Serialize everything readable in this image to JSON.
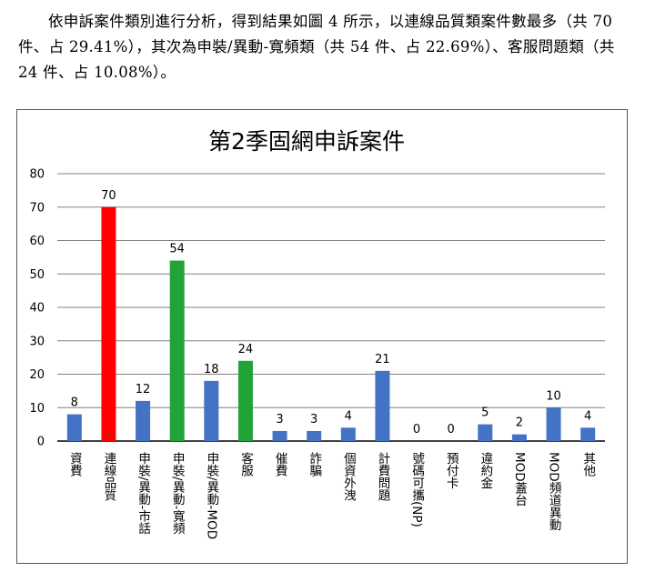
{
  "document": {
    "paragraph": "依申訴案件類別進行分析，得到結果如圖 4 所示，以連線品質類案件數最多（共 70 件、占 29.41%），其次為申裝/異動-寬頻類（共 54 件、占 22.69%）、客服問題類（共 24 件、占 10.08%）。"
  },
  "chart_data": {
    "type": "bar",
    "title": "第2季固網申訴案件",
    "xlabel": "",
    "ylabel": "",
    "ylim": [
      0,
      80
    ],
    "yticks": [
      0,
      10,
      20,
      30,
      40,
      50,
      60,
      70,
      80
    ],
    "grid": true,
    "legend": "none",
    "categories": [
      "資費",
      "連線品質",
      "申裝/異動-市話",
      "申裝/異動-寬頻",
      "申裝/異動-MOD",
      "客服",
      "催費",
      "詐騙",
      "個資外洩",
      "計費問題",
      "號碼可攜(NP)",
      "預付卡",
      "違約金",
      "MOD蓋台",
      "MOD頻道異動",
      "其他"
    ],
    "values": [
      8,
      70,
      12,
      54,
      18,
      24,
      3,
      3,
      4,
      21,
      0,
      0,
      5,
      2,
      10,
      4
    ],
    "bar_colors": [
      "#4472C4",
      "#FF0000",
      "#4472C4",
      "#22A33A",
      "#4472C4",
      "#22A33A",
      "#4472C4",
      "#4472C4",
      "#4472C4",
      "#4472C4",
      "#4472C4",
      "#4472C4",
      "#4472C4",
      "#4472C4",
      "#4472C4",
      "#4472C4"
    ],
    "colors": {
      "grid": "#808080",
      "axis": "#000000",
      "frame": "#555555"
    }
  }
}
